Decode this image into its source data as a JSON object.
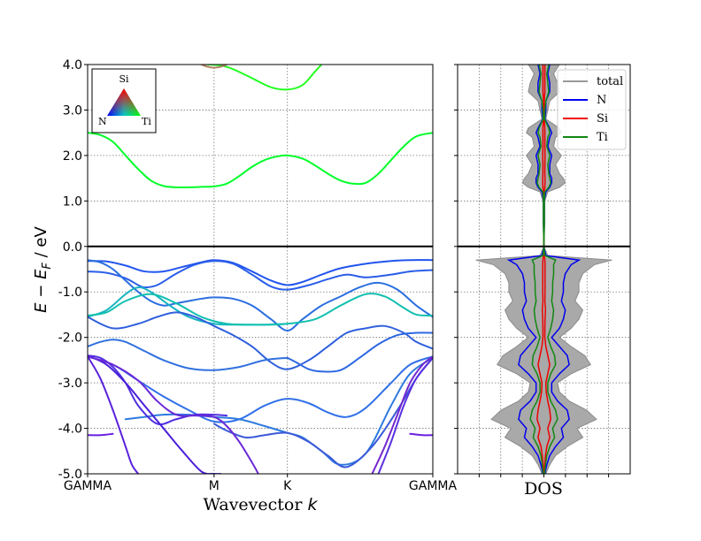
{
  "chart_data": [
    {
      "type": "line",
      "panel": "band-structure",
      "title": "",
      "xlabel": "Wavevector",
      "xlabel_symbol": "k",
      "ylabel": "E − E_F / eV",
      "ylabel_parts": {
        "E1": "E",
        "minus": " − ",
        "E2": "E",
        "sub": "F",
        "unit": " / eV"
      },
      "ylim": [
        -5.0,
        4.0
      ],
      "yticks": [
        -5.0,
        -4.0,
        -3.0,
        -2.0,
        -1.0,
        0.0,
        1.0,
        2.0,
        3.0,
        4.0
      ],
      "ytick_labels": [
        "-5.0",
        "-4.0",
        "-3.0",
        "-2.0",
        "-1.0",
        "0.0",
        "1.0",
        "2.0",
        "3.0",
        "4.0"
      ],
      "xlim": [
        0.0,
        2.73
      ],
      "kpoints": [
        {
          "label": "GAMMA",
          "k": 0.0
        },
        {
          "label": "M",
          "k": 1.0
        },
        {
          "label": "K",
          "k": 1.58
        },
        {
          "label": "GAMMA",
          "k": 2.73
        }
      ],
      "fermi_level": 0.0,
      "grid": true,
      "projection_legend": {
        "top": "Si",
        "left": "N",
        "right": "Ti"
      },
      "bands": [
        {
          "name": "",
          "color": "#00ff2a",
          "k": [
            0,
            0.1,
            0.2,
            0.3,
            0.4,
            0.5,
            0.6,
            0.7,
            0.8,
            0.9,
            1.0,
            1.1,
            1.2,
            1.3,
            1.4,
            1.5,
            1.58,
            1.7,
            1.8,
            1.9,
            2.0,
            2.1,
            2.2,
            2.3,
            2.4,
            2.5,
            2.6,
            2.73
          ],
          "E": [
            2.5,
            2.45,
            2.3,
            2.0,
            1.7,
            1.45,
            1.33,
            1.3,
            1.3,
            1.31,
            1.32,
            1.38,
            1.55,
            1.75,
            1.9,
            1.98,
            2.0,
            1.93,
            1.78,
            1.6,
            1.45,
            1.38,
            1.4,
            1.6,
            1.9,
            2.2,
            2.42,
            2.5
          ]
        },
        {
          "name": "",
          "color": "#22ff22",
          "k": [
            0.95,
            1.05,
            1.15,
            1.3,
            1.45,
            1.58,
            1.7,
            1.8,
            1.85
          ],
          "E": [
            4.0,
            3.98,
            3.9,
            3.7,
            3.5,
            3.45,
            3.55,
            3.85,
            4.0
          ]
        },
        {
          "name": "",
          "color": "#b08060",
          "k": [
            0.9,
            0.95,
            1.0,
            1.05,
            1.1
          ],
          "E": [
            4.0,
            3.95,
            3.93,
            3.95,
            4.0
          ]
        },
        {
          "name": "",
          "color": "#2255ee",
          "k": [
            0,
            0.15,
            0.3,
            0.45,
            0.6,
            0.75,
            0.9,
            1.0,
            1.15,
            1.3,
            1.45,
            1.58,
            1.7,
            1.85,
            2.0,
            2.2,
            2.4,
            2.55,
            2.73
          ],
          "E": [
            -0.32,
            -0.33,
            -0.42,
            -0.55,
            -0.55,
            -0.45,
            -0.35,
            -0.3,
            -0.36,
            -0.55,
            -0.75,
            -0.85,
            -0.78,
            -0.62,
            -0.48,
            -0.38,
            -0.32,
            -0.3,
            -0.3
          ]
        },
        {
          "name": "",
          "color": "#2a5de8",
          "k": [
            0,
            0.15,
            0.3,
            0.4,
            0.45,
            0.55,
            0.7,
            0.85,
            1.0,
            1.15,
            1.3,
            1.45,
            1.58,
            1.75,
            1.9,
            2.05,
            2.2,
            2.4,
            2.55,
            2.73
          ],
          "E": [
            -0.55,
            -0.58,
            -0.7,
            -0.85,
            -0.9,
            -0.85,
            -0.6,
            -0.4,
            -0.32,
            -0.38,
            -0.62,
            -0.88,
            -0.95,
            -0.85,
            -0.72,
            -0.62,
            -0.68,
            -0.62,
            -0.55,
            -0.52
          ]
        },
        {
          "name": "",
          "color": "#2a6ee0",
          "k": [
            0,
            0.1,
            0.2,
            0.3,
            0.4,
            0.5,
            0.6,
            0.7,
            0.8,
            0.9,
            1.0,
            1.15,
            1.3,
            1.45,
            1.58,
            1.7,
            1.85,
            2.0,
            2.15,
            2.3,
            2.45,
            2.6,
            2.73
          ],
          "E": [
            -0.3,
            -0.35,
            -0.5,
            -0.75,
            -1.0,
            -1.2,
            -1.3,
            -1.25,
            -1.2,
            -1.15,
            -1.12,
            -1.15,
            -1.3,
            -1.6,
            -1.85,
            -1.6,
            -1.3,
            -1.1,
            -0.9,
            -0.8,
            -0.95,
            -1.3,
            -1.55
          ]
        },
        {
          "name": "",
          "color": "#18b4c0",
          "k": [
            0,
            0.15,
            0.3,
            0.4,
            0.5,
            0.65,
            0.8,
            1.0,
            1.2,
            1.4,
            1.58
          ],
          "E": [
            -1.55,
            -1.4,
            -1.05,
            -0.9,
            -1.0,
            -1.3,
            -1.55,
            -1.7,
            -1.72,
            -1.72,
            -1.7
          ]
        },
        {
          "name": "",
          "color": "#12c0b0",
          "k": [
            0,
            0.15,
            0.3,
            0.5,
            0.7,
            0.9,
            1.1,
            1.3,
            1.45,
            1.58,
            1.8,
            2.0,
            2.2,
            2.35,
            2.5,
            2.6,
            2.73
          ],
          "E": [
            -1.52,
            -1.45,
            -1.2,
            -1.05,
            -1.25,
            -1.55,
            -1.7,
            -1.72,
            -1.72,
            -1.7,
            -1.6,
            -1.3,
            -1.05,
            -1.1,
            -1.35,
            -1.5,
            -1.52
          ]
        },
        {
          "name": "",
          "color": "#2f60dd",
          "k": [
            0,
            0.2,
            0.4,
            0.55,
            0.7,
            0.85,
            1.0,
            1.15,
            1.3,
            1.45,
            1.58,
            1.75,
            1.9,
            2.05,
            2.2,
            2.35,
            2.5,
            2.6,
            2.73
          ],
          "E": [
            -1.55,
            -1.8,
            -1.7,
            -1.55,
            -1.45,
            -1.55,
            -1.75,
            -1.95,
            -2.2,
            -2.55,
            -2.7,
            -2.5,
            -2.2,
            -1.9,
            -1.8,
            -1.75,
            -1.9,
            -2.1,
            -2.25
          ]
        },
        {
          "name": "",
          "color": "#3070e0",
          "k": [
            0,
            0.1,
            0.2,
            0.3,
            0.45,
            0.6,
            0.8,
            1.0,
            1.2,
            1.4,
            1.58
          ],
          "E": [
            -2.2,
            -2.1,
            -2.05,
            -2.1,
            -2.3,
            -2.5,
            -2.68,
            -2.72,
            -2.65,
            -2.5,
            -2.45
          ]
        },
        {
          "name": "",
          "color": "#2d68e2",
          "k": [
            1.58,
            1.65,
            1.75,
            1.85,
            2.0,
            2.15,
            2.3,
            2.45,
            2.6,
            2.73
          ],
          "E": [
            -2.45,
            -2.55,
            -2.7,
            -2.75,
            -2.72,
            -2.45,
            -2.15,
            -1.95,
            -1.9,
            -1.9
          ]
        },
        {
          "name": "",
          "color": "#3070e8",
          "k": [
            0,
            0.2,
            0.4,
            0.6,
            0.8,
            1.0,
            1.2,
            1.4,
            1.58,
            1.75,
            1.9,
            2.05,
            2.2,
            2.4,
            2.55,
            2.73
          ],
          "E": [
            -2.42,
            -2.6,
            -2.95,
            -3.3,
            -3.6,
            -3.85,
            -3.8,
            -3.5,
            -3.35,
            -3.45,
            -3.65,
            -3.75,
            -3.55,
            -3.0,
            -2.6,
            -2.42
          ]
        },
        {
          "name": "",
          "color": "#2d7ae0",
          "k": [
            0.3,
            0.45,
            0.6,
            0.8,
            1.0,
            1.2,
            1.4,
            1.58,
            1.7,
            1.85,
            2.0,
            2.2,
            2.4,
            2.55,
            2.73
          ],
          "E": [
            -3.8,
            -3.75,
            -3.7,
            -3.7,
            -3.75,
            -3.8,
            -3.95,
            -4.1,
            -4.2,
            -4.5,
            -4.8,
            -4.55,
            -3.5,
            -2.8,
            -2.45
          ]
        },
        {
          "name": "",
          "color": "#3b5ad8",
          "k": [
            1.0,
            1.1,
            1.25,
            1.4,
            1.58,
            1.75,
            1.9,
            2.05,
            2.25,
            2.45,
            2.6,
            2.73
          ],
          "E": [
            -3.9,
            -4.05,
            -4.2,
            -4.15,
            -4.1,
            -4.3,
            -4.6,
            -4.85,
            -4.4,
            -3.6,
            -2.9,
            -2.45
          ]
        },
        {
          "name": "",
          "color": "#5030e0",
          "k": [
            0,
            0.1,
            0.2,
            0.3,
            0.4,
            0.55,
            0.7,
            0.85,
            1.0,
            1.1
          ],
          "E": [
            -2.4,
            -2.45,
            -2.65,
            -3.0,
            -3.5,
            -3.9,
            -3.8,
            -3.7,
            -3.7,
            -3.72
          ]
        },
        {
          "name": "",
          "color": "#4a20d8",
          "k": [
            0,
            0.15,
            0.3,
            0.45,
            0.6,
            0.75,
            0.9,
            1.0,
            1.05
          ],
          "E": [
            -2.4,
            -2.6,
            -3.0,
            -3.5,
            -4.0,
            -4.5,
            -4.95,
            -5.0,
            -5.0
          ]
        },
        {
          "name": "",
          "color": "#6a28d8",
          "k": [
            0,
            0.2,
            0.4,
            0.55,
            0.7,
            0.85,
            1.0,
            1.1,
            1.2,
            1.3,
            1.35
          ],
          "E": [
            -2.42,
            -2.6,
            -2.95,
            -3.4,
            -3.7,
            -3.72,
            -3.75,
            -3.95,
            -4.3,
            -4.75,
            -5.0
          ]
        },
        {
          "name": "",
          "color": "#5a22dc",
          "k": [
            0,
            0.1,
            0.2,
            0.3,
            0.35,
            0.4
          ],
          "E": [
            -2.42,
            -2.9,
            -3.6,
            -4.4,
            -4.8,
            -5.0
          ]
        },
        {
          "name": "",
          "color": "#6a20e0",
          "k": [
            0,
            0.1,
            0.2
          ],
          "E": [
            -4.15,
            -4.15,
            -4.12
          ]
        },
        {
          "name": "",
          "color": "#7428d0",
          "k": [
            2.25,
            2.35,
            2.45,
            2.55,
            2.65,
            2.73
          ],
          "E": [
            -5.0,
            -4.4,
            -3.7,
            -3.0,
            -2.6,
            -2.42
          ]
        },
        {
          "name": "",
          "color": "#5a30e0",
          "k": [
            2.3,
            2.4,
            2.5,
            2.6,
            2.73
          ],
          "E": [
            -5.0,
            -4.3,
            -3.5,
            -2.9,
            -2.45
          ]
        },
        {
          "name": "",
          "color": "#6a20e0",
          "k": [
            2.55,
            2.65,
            2.73
          ],
          "E": [
            -4.12,
            -4.15,
            -4.15
          ]
        }
      ]
    },
    {
      "type": "area",
      "panel": "dos",
      "title": "",
      "xlabel": "DOS",
      "ylim": [
        -5.0,
        4.0
      ],
      "grid": true,
      "legend_position": "top-right",
      "energy": [
        4.0,
        3.8,
        3.6,
        3.4,
        3.2,
        3.0,
        2.8,
        2.6,
        2.5,
        2.4,
        2.2,
        2.0,
        1.8,
        1.6,
        1.5,
        1.4,
        1.3,
        1.2,
        1.0,
        0.5,
        0.0,
        -0.2,
        -0.3,
        -0.4,
        -0.6,
        -0.8,
        -1.0,
        -1.2,
        -1.4,
        -1.6,
        -1.8,
        -2.0,
        -2.2,
        -2.4,
        -2.6,
        -2.8,
        -3.0,
        -3.2,
        -3.4,
        -3.6,
        -3.8,
        -4.0,
        -4.2,
        -4.4,
        -4.6,
        -4.8,
        -5.0
      ],
      "series": [
        {
          "name": "total",
          "color": "#999999",
          "values": [
            0.8,
            0.5,
            0.7,
            0.8,
            0.3,
            0.2,
            0.1,
            0.8,
            0.9,
            0.6,
            0.5,
            0.9,
            0.6,
            0.8,
            1.0,
            1.1,
            0.8,
            0.2,
            0.05,
            0.05,
            0.0,
            0.2,
            3.5,
            2.6,
            2.0,
            1.8,
            1.8,
            1.6,
            2.0,
            1.8,
            1.4,
            0.8,
            1.4,
            2.1,
            2.4,
            1.4,
            0.7,
            0.8,
            1.3,
            2.2,
            2.7,
            1.7,
            2.0,
            1.2,
            0.6,
            0.3,
            0.1
          ]
        },
        {
          "name": "N",
          "color": "#0000ee",
          "values": [
            0.3,
            0.2,
            0.3,
            0.3,
            0.1,
            0.1,
            0.05,
            0.3,
            0.4,
            0.3,
            0.2,
            0.4,
            0.3,
            0.3,
            0.4,
            0.4,
            0.3,
            0.1,
            0.02,
            0.02,
            0.0,
            0.1,
            1.8,
            1.4,
            1.1,
            1.0,
            1.0,
            0.9,
            1.1,
            1.0,
            0.8,
            0.4,
            0.8,
            1.2,
            1.3,
            0.8,
            0.4,
            0.4,
            0.7,
            1.2,
            1.3,
            0.9,
            1.0,
            0.6,
            0.3,
            0.15,
            0.05
          ]
        },
        {
          "name": "Si",
          "color": "#ee0000",
          "values": [
            0.05,
            0.05,
            0.05,
            0.05,
            0.02,
            0.02,
            0.02,
            0.05,
            0.05,
            0.05,
            0.05,
            0.06,
            0.05,
            0.05,
            0.06,
            0.06,
            0.05,
            0.02,
            0.01,
            0.01,
            0.0,
            0.02,
            0.05,
            0.06,
            0.06,
            0.06,
            0.06,
            0.05,
            0.08,
            0.06,
            0.05,
            0.05,
            0.1,
            0.2,
            0.3,
            0.2,
            0.1,
            0.12,
            0.2,
            0.3,
            0.35,
            0.2,
            0.3,
            0.15,
            0.08,
            0.04,
            0.02
          ]
        },
        {
          "name": "Ti",
          "color": "#118811",
          "values": [
            0.25,
            0.15,
            0.2,
            0.25,
            0.1,
            0.05,
            0.03,
            0.25,
            0.3,
            0.2,
            0.15,
            0.3,
            0.2,
            0.25,
            0.3,
            0.35,
            0.25,
            0.05,
            0.02,
            0.02,
            0.0,
            0.05,
            0.6,
            0.5,
            0.5,
            0.45,
            0.45,
            0.4,
            0.5,
            0.45,
            0.35,
            0.2,
            0.35,
            0.55,
            0.6,
            0.35,
            0.2,
            0.2,
            0.35,
            0.6,
            0.7,
            0.45,
            0.55,
            0.3,
            0.15,
            0.08,
            0.03
          ]
        }
      ]
    }
  ]
}
